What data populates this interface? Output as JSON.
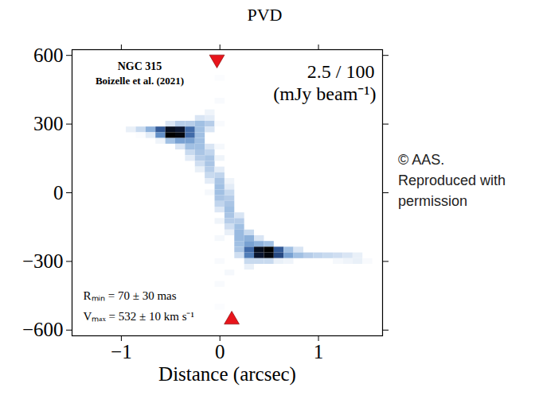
{
  "chart_data": {
    "type": "heatmap",
    "title": "PVD",
    "xlabel": "Distance (arcsec)",
    "xlim": [
      -1.5,
      1.65
    ],
    "ylim": [
      -625,
      625
    ],
    "xticks": [
      {
        "value": -1,
        "label": "−1"
      },
      0,
      1
    ],
    "yticks": [
      {
        "value": -600,
        "label": "−600"
      },
      {
        "value": -300,
        "label": "−300"
      },
      0,
      300,
      600
    ],
    "colorbar": {
      "range": [
        2.5,
        100
      ],
      "label": "2.5 / 100",
      "unit": "(mJy beam⁻¹)"
    },
    "source_labels": [
      "NGC 315",
      "Boizelle et al. (2021)"
    ],
    "fit_labels": [
      "Rₘᵢₙ = 70 ± 30 mas",
      "Vₘₐₓ = 532 ± 10 km s⁻¹"
    ],
    "copyright": "© AAS. Reproduced with permission",
    "markers": {
      "color": "#e8141b",
      "points": [
        {
          "x": -0.03,
          "y": 583,
          "marker": "triangle-down"
        },
        {
          "x": 0.12,
          "y": -555,
          "marker": "triangle-up"
        }
      ]
    },
    "cells": [
      [
        -0.9,
        275,
        10
      ],
      [
        -0.8,
        275,
        20
      ],
      [
        -0.8,
        250,
        4
      ],
      [
        -0.7,
        275,
        35
      ],
      [
        -0.7,
        250,
        12
      ],
      [
        -0.6,
        275,
        60
      ],
      [
        -0.6,
        250,
        45
      ],
      [
        -0.6,
        225,
        8
      ],
      [
        -0.5,
        300,
        15
      ],
      [
        -0.5,
        275,
        90
      ],
      [
        -0.5,
        250,
        100
      ],
      [
        -0.5,
        225,
        30
      ],
      [
        -0.4,
        300,
        25
      ],
      [
        -0.4,
        275,
        85
      ],
      [
        -0.4,
        250,
        95
      ],
      [
        -0.4,
        225,
        40
      ],
      [
        -0.4,
        200,
        15
      ],
      [
        -0.3,
        300,
        25
      ],
      [
        -0.3,
        275,
        55
      ],
      [
        -0.3,
        250,
        55
      ],
      [
        -0.3,
        225,
        40
      ],
      [
        -0.3,
        200,
        30
      ],
      [
        -0.3,
        175,
        20
      ],
      [
        -0.3,
        150,
        12
      ],
      [
        -0.2,
        325,
        15
      ],
      [
        -0.2,
        300,
        30
      ],
      [
        -0.2,
        275,
        30
      ],
      [
        -0.2,
        250,
        30
      ],
      [
        -0.2,
        225,
        30
      ],
      [
        -0.2,
        200,
        30
      ],
      [
        -0.2,
        175,
        28
      ],
      [
        -0.2,
        150,
        25
      ],
      [
        -0.2,
        125,
        18
      ],
      [
        -0.2,
        100,
        10
      ],
      [
        -0.1,
        350,
        8
      ],
      [
        -0.1,
        325,
        12
      ],
      [
        -0.1,
        300,
        25
      ],
      [
        -0.1,
        275,
        15
      ],
      [
        -0.1,
        200,
        15
      ],
      [
        -0.1,
        175,
        22
      ],
      [
        -0.1,
        150,
        28
      ],
      [
        -0.1,
        125,
        28
      ],
      [
        -0.1,
        100,
        25
      ],
      [
        -0.1,
        75,
        20
      ],
      [
        -0.1,
        50,
        12
      ],
      [
        -0.1,
        0,
        6
      ],
      [
        0.0,
        500,
        4
      ],
      [
        0.0,
        400,
        5
      ],
      [
        0.0,
        300,
        5
      ],
      [
        0.0,
        200,
        6
      ],
      [
        0.0,
        150,
        8
      ],
      [
        0.0,
        100,
        12
      ],
      [
        0.0,
        75,
        22
      ],
      [
        0.0,
        50,
        28
      ],
      [
        0.0,
        25,
        30
      ],
      [
        0.0,
        0,
        30
      ],
      [
        0.0,
        -25,
        28
      ],
      [
        0.0,
        -50,
        22
      ],
      [
        0.0,
        -75,
        14
      ],
      [
        0.0,
        -125,
        8
      ],
      [
        0.0,
        -200,
        6
      ],
      [
        0.0,
        -300,
        5
      ],
      [
        0.0,
        -400,
        5
      ],
      [
        0.0,
        -500,
        4
      ],
      [
        0.1,
        50,
        8
      ],
      [
        0.1,
        25,
        12
      ],
      [
        0.1,
        0,
        20
      ],
      [
        0.1,
        -25,
        25
      ],
      [
        0.1,
        -50,
        28
      ],
      [
        0.1,
        -75,
        30
      ],
      [
        0.1,
        -100,
        28
      ],
      [
        0.1,
        -125,
        25
      ],
      [
        0.1,
        -150,
        18
      ],
      [
        0.1,
        -175,
        10
      ],
      [
        0.1,
        -350,
        6
      ],
      [
        0.2,
        -100,
        15
      ],
      [
        0.2,
        -125,
        25
      ],
      [
        0.2,
        -150,
        30
      ],
      [
        0.2,
        -175,
        32
      ],
      [
        0.2,
        -200,
        32
      ],
      [
        0.2,
        -225,
        30
      ],
      [
        0.2,
        -250,
        28
      ],
      [
        0.2,
        -275,
        18
      ],
      [
        0.3,
        -175,
        20
      ],
      [
        0.3,
        -200,
        35
      ],
      [
        0.3,
        -225,
        40
      ],
      [
        0.3,
        -250,
        55
      ],
      [
        0.3,
        -275,
        50
      ],
      [
        0.3,
        -300,
        20
      ],
      [
        0.3,
        -325,
        10
      ],
      [
        0.4,
        -200,
        15
      ],
      [
        0.4,
        -225,
        35
      ],
      [
        0.4,
        -250,
        90
      ],
      [
        0.4,
        -275,
        85
      ],
      [
        0.4,
        -300,
        20
      ],
      [
        0.5,
        -225,
        30
      ],
      [
        0.5,
        -250,
        100
      ],
      [
        0.5,
        -275,
        95
      ],
      [
        0.5,
        -300,
        20
      ],
      [
        0.6,
        -250,
        60
      ],
      [
        0.6,
        -275,
        65
      ],
      [
        0.6,
        -300,
        10
      ],
      [
        0.7,
        -250,
        30
      ],
      [
        0.7,
        -275,
        40
      ],
      [
        0.7,
        -300,
        8
      ],
      [
        0.8,
        -250,
        15
      ],
      [
        0.8,
        -275,
        30
      ],
      [
        0.9,
        -275,
        25
      ],
      [
        1.0,
        -275,
        22
      ],
      [
        1.1,
        -275,
        20
      ],
      [
        1.2,
        -275,
        18
      ],
      [
        1.2,
        -300,
        6
      ],
      [
        1.3,
        -275,
        15
      ],
      [
        1.3,
        -300,
        8
      ],
      [
        1.4,
        -275,
        10
      ],
      [
        1.4,
        -300,
        10
      ],
      [
        1.5,
        -300,
        5
      ]
    ]
  }
}
